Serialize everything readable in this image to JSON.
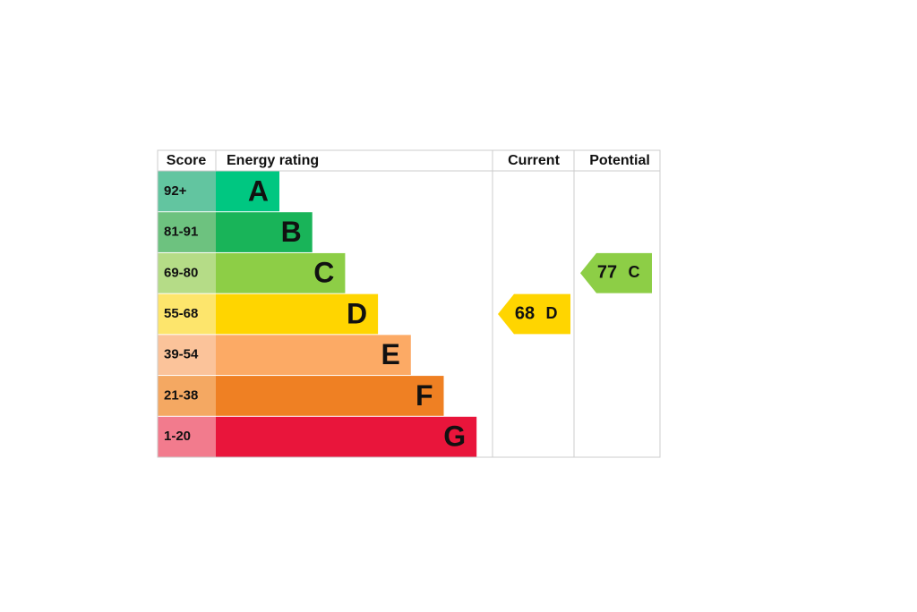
{
  "header": {
    "score": "Score",
    "energy_rating": "Energy rating",
    "current": "Current",
    "potential": "Potential"
  },
  "rows": [
    {
      "score": "92+",
      "rating": "A",
      "score_color": "#62c5a0",
      "bar_color": "#00c781"
    },
    {
      "score": "81-91",
      "rating": "B",
      "score_color": "#6dc27f",
      "bar_color": "#19b459"
    },
    {
      "score": "69-80",
      "rating": "C",
      "score_color": "#b5dc87",
      "bar_color": "#8dce46"
    },
    {
      "score": "55-68",
      "rating": "D",
      "score_color": "#fde56c",
      "bar_color": "#ffd500"
    },
    {
      "score": "39-54",
      "rating": "E",
      "score_color": "#fbc39a",
      "bar_color": "#fcaa65"
    },
    {
      "score": "21-38",
      "rating": "F",
      "score_color": "#f4a862",
      "bar_color": "#ef8023"
    },
    {
      "score": "1-20",
      "rating": "G",
      "score_color": "#f27b8d",
      "bar_color": "#e9153b"
    }
  ],
  "current": {
    "score": 68,
    "rating": "D"
  },
  "potential": {
    "score": 77,
    "rating": "C"
  }
}
